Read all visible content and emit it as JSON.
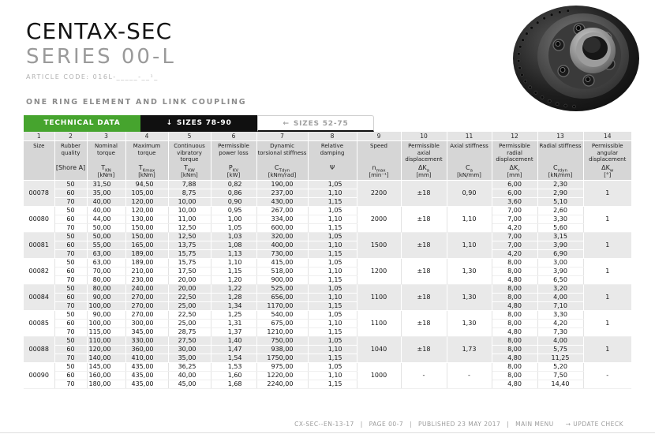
{
  "page": {
    "title": "CENTAX-SEC",
    "series": "SERIES 00-L",
    "article_code": "ARTICLE CODE: 016L-_____-__¹_",
    "section_heading": "ONE RING ELEMENT AND LINK COUPLING"
  },
  "colors": {
    "accent_green": "#46a42e",
    "tab_black": "#101010",
    "shaded_row": "#e9e9e9",
    "header_gray": "#d6d6d6"
  },
  "tabs": [
    {
      "label": "TECHNICAL DATA",
      "icon": "",
      "style": "green"
    },
    {
      "label": "SIZES 78-90",
      "icon": "↓",
      "style": "black"
    },
    {
      "label": "SIZES 52-75",
      "icon": "←",
      "style": "white"
    }
  ],
  "table": {
    "columns": [
      {
        "num": "1",
        "name": "Size",
        "symbol": "",
        "sub": "",
        "unit": ""
      },
      {
        "num": "2",
        "name": "Rubber quality",
        "symbol": "[Shore A]",
        "sub": "",
        "unit": ""
      },
      {
        "num": "3",
        "name": "Nominal torque",
        "symbol": "T",
        "sub": "KN",
        "unit": "[kNm]"
      },
      {
        "num": "4",
        "name": "Maximum torque",
        "symbol": "T",
        "sub": "Kmax",
        "unit": "[kNm]"
      },
      {
        "num": "5",
        "name": "Continuous vibratory torque",
        "symbol": "T",
        "sub": "KW",
        "unit": "[kNm]"
      },
      {
        "num": "6",
        "name": "Permissible power loss",
        "symbol": "P",
        "sub": "KV",
        "unit": "[kW]"
      },
      {
        "num": "7",
        "name": "Dynamic torsional stiffness",
        "symbol": "C",
        "sub": "Tdyn",
        "unit": "[kNm/rad]"
      },
      {
        "num": "8",
        "name": "Relative damping",
        "symbol": "Ψ",
        "sub": "",
        "unit": ""
      },
      {
        "num": "9",
        "name": "Speed",
        "symbol": "n",
        "sub": "max",
        "unit": "[min⁻¹]"
      },
      {
        "num": "10",
        "name": "Permissible axial displacement",
        "symbol": "ΔK",
        "sub": "a",
        "unit": "[mm]"
      },
      {
        "num": "11",
        "name": "Axial stiffness",
        "symbol": "C",
        "sub": "a",
        "unit": "[kN/mm]"
      },
      {
        "num": "12",
        "name": "Permissible radial displacement",
        "symbol": "ΔK",
        "sub": "r",
        "unit": "[mm]"
      },
      {
        "num": "13",
        "name": "Radial stiffness",
        "symbol": "C",
        "sub": "rdyn",
        "unit": "[kN/mm]"
      },
      {
        "num": "14",
        "name": "Permissible angular displacement",
        "symbol": "ΔK",
        "sub": "w",
        "unit": "[°]"
      }
    ],
    "groups": [
      {
        "size": "00078",
        "shaded": true,
        "speed": "2200",
        "axial_disp": "±18",
        "axial_stiff": "0,90",
        "angular": "1",
        "rows": [
          [
            "50",
            "31,50",
            "94,50",
            "7,88",
            "0,82",
            "190,00",
            "1,05",
            "6,00",
            "2,30"
          ],
          [
            "60",
            "35,00",
            "105,00",
            "8,75",
            "0,86",
            "237,00",
            "1,10",
            "6,00",
            "2,90"
          ],
          [
            "70",
            "40,00",
            "120,00",
            "10,00",
            "0,90",
            "430,00",
            "1,15",
            "3,60",
            "5,10"
          ]
        ]
      },
      {
        "size": "00080",
        "shaded": false,
        "speed": "2000",
        "axial_disp": "±18",
        "axial_stiff": "1,10",
        "angular": "1",
        "rows": [
          [
            "50",
            "40,00",
            "120,00",
            "10,00",
            "0,95",
            "267,00",
            "1,05",
            "7,00",
            "2,60"
          ],
          [
            "60",
            "44,00",
            "130,00",
            "11,00",
            "1,00",
            "334,00",
            "1,10",
            "7,00",
            "3,30"
          ],
          [
            "70",
            "50,00",
            "150,00",
            "12,50",
            "1,05",
            "600,00",
            "1,15",
            "4,20",
            "5,60"
          ]
        ]
      },
      {
        "size": "00081",
        "shaded": true,
        "speed": "1500",
        "axial_disp": "±18",
        "axial_stiff": "1,10",
        "angular": "1",
        "rows": [
          [
            "50",
            "50,00",
            "150,00",
            "12,50",
            "1,03",
            "320,00",
            "1,05",
            "7,00",
            "3,15"
          ],
          [
            "60",
            "55,00",
            "165,00",
            "13,75",
            "1,08",
            "400,00",
            "1,10",
            "7,00",
            "3,90"
          ],
          [
            "70",
            "63,00",
            "189,00",
            "15,75",
            "1,13",
            "730,00",
            "1,15",
            "4,20",
            "6,90"
          ]
        ]
      },
      {
        "size": "00082",
        "shaded": false,
        "speed": "1200",
        "axial_disp": "±18",
        "axial_stiff": "1,30",
        "angular": "1",
        "rows": [
          [
            "50",
            "63,00",
            "189,00",
            "15,75",
            "1,10",
            "415,00",
            "1,05",
            "8,00",
            "3,00"
          ],
          [
            "60",
            "70,00",
            "210,00",
            "17,50",
            "1,15",
            "518,00",
            "1,10",
            "8,00",
            "3,90"
          ],
          [
            "70",
            "80,00",
            "230,00",
            "20,00",
            "1,20",
            "900,00",
            "1,15",
            "4,80",
            "6,50"
          ]
        ]
      },
      {
        "size": "00084",
        "shaded": true,
        "speed": "1100",
        "axial_disp": "±18",
        "axial_stiff": "1,30",
        "angular": "1",
        "rows": [
          [
            "50",
            "80,00",
            "240,00",
            "20,00",
            "1,22",
            "525,00",
            "1,05",
            "8,00",
            "3,20"
          ],
          [
            "60",
            "90,00",
            "270,00",
            "22,50",
            "1,28",
            "656,00",
            "1,10",
            "8,00",
            "4,00"
          ],
          [
            "70",
            "100,00",
            "270,00",
            "25,00",
            "1,34",
            "1170,00",
            "1,15",
            "4,80",
            "7,10"
          ]
        ]
      },
      {
        "size": "00085",
        "shaded": false,
        "speed": "1100",
        "axial_disp": "±18",
        "axial_stiff": "1,30",
        "angular": "1",
        "rows": [
          [
            "50",
            "90,00",
            "270,00",
            "22,50",
            "1,25",
            "540,00",
            "1,05",
            "8,00",
            "3,30"
          ],
          [
            "60",
            "100,00",
            "300,00",
            "25,00",
            "1,31",
            "675,00",
            "1,10",
            "8,00",
            "4,20"
          ],
          [
            "70",
            "115,00",
            "345,00",
            "28,75",
            "1,37",
            "1210,00",
            "1,15",
            "4,80",
            "7,30"
          ]
        ]
      },
      {
        "size": "00088",
        "shaded": true,
        "speed": "1040",
        "axial_disp": "±18",
        "axial_stiff": "1,73",
        "angular": "1",
        "rows": [
          [
            "50",
            "110,00",
            "330,00",
            "27,50",
            "1,40",
            "750,00",
            "1,05",
            "8,00",
            "4,00"
          ],
          [
            "60",
            "120,00",
            "360,00",
            "30,00",
            "1,47",
            "938,00",
            "1,10",
            "8,00",
            "5,75"
          ],
          [
            "70",
            "140,00",
            "410,00",
            "35,00",
            "1,54",
            "1750,00",
            "1,15",
            "4,80",
            "11,25"
          ]
        ]
      },
      {
        "size": "00090",
        "shaded": false,
        "speed": "1000",
        "axial_disp": "-",
        "axial_stiff": "-",
        "angular": "-",
        "rows": [
          [
            "50",
            "145,00",
            "435,00",
            "36,25",
            "1,53",
            "975,00",
            "1,05",
            "8,00",
            "5,20"
          ],
          [
            "60",
            "160,00",
            "435,00",
            "40,00",
            "1,60",
            "1220,00",
            "1,10",
            "8,00",
            "7,50"
          ],
          [
            "70",
            "180,00",
            "435,00",
            "45,00",
            "1,68",
            "2240,00",
            "1,15",
            "4,80",
            "14,40"
          ]
        ]
      }
    ]
  },
  "footer": {
    "doc": "CX-SEC--EN-13-17",
    "sep": "|",
    "page": "PAGE 00-7",
    "published": "PUBLISHED 23 MAY 2017",
    "main_menu": "MAIN MENU",
    "update": "→ UPDATE CHECK"
  }
}
